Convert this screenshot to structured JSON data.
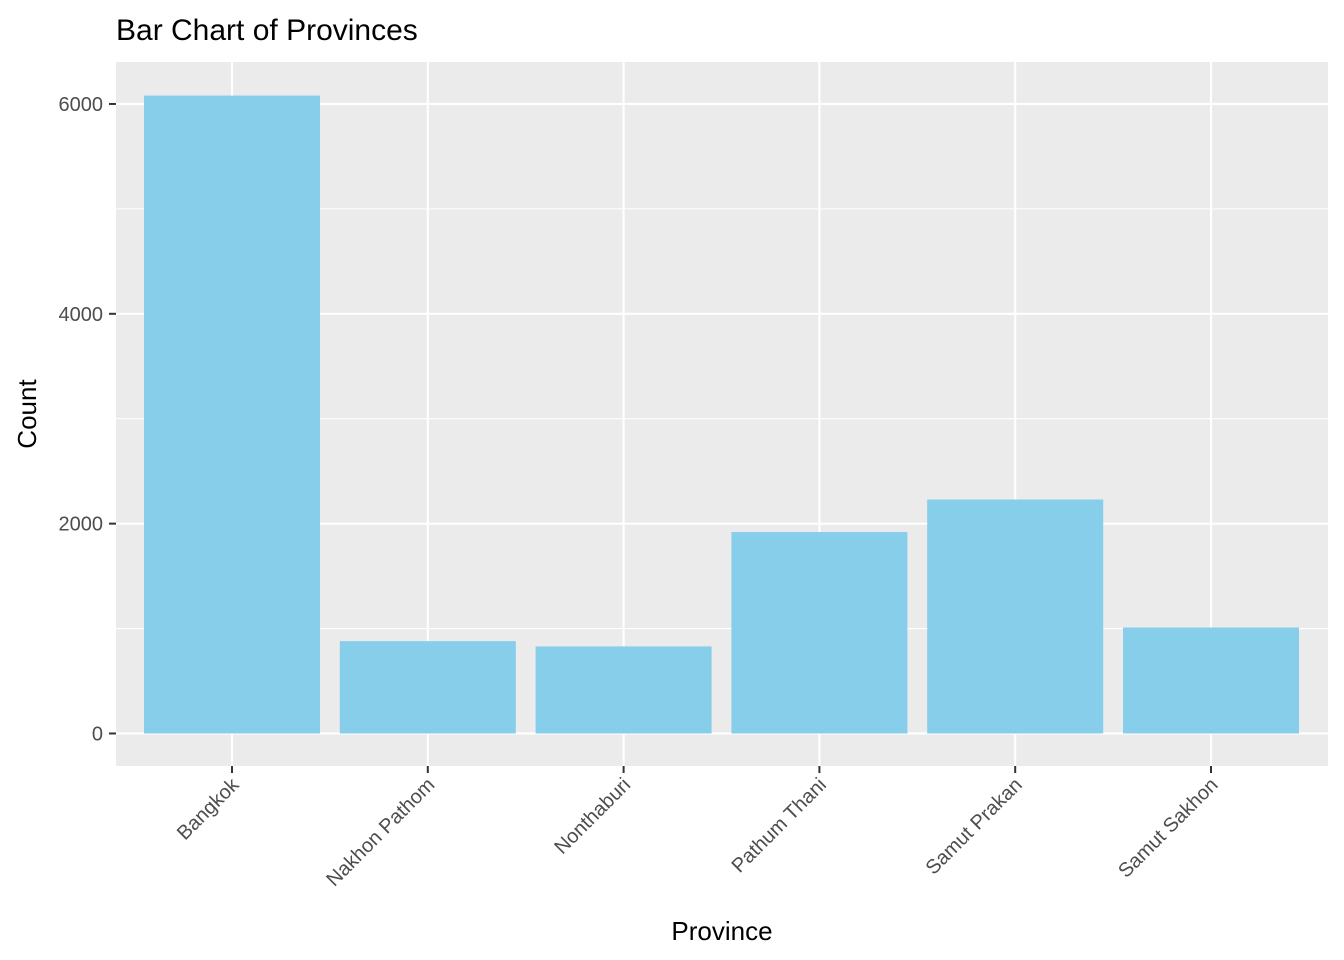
{
  "chart_data": {
    "type": "bar",
    "title": "Bar Chart of Provinces",
    "xlabel": "Province",
    "ylabel": "Count",
    "categories": [
      "Bangkok",
      "Nakhon Pathom",
      "Nonthaburi",
      "Pathum Thani",
      "Samut Prakan",
      "Samut Sakhon"
    ],
    "values": [
      6080,
      880,
      830,
      1920,
      2230,
      1010
    ],
    "ylim": [
      -310,
      6400
    ],
    "yticks": [
      0,
      2000,
      4000,
      6000
    ],
    "ytick_labels": [
      "0",
      "2000",
      "4000",
      "6000"
    ],
    "grid": true,
    "colors": {
      "bar": "#87ceeb",
      "panel": "#ebebeb",
      "grid_major": "#ffffff",
      "grid_minor": "#f7f7f7",
      "tick": "#333333"
    }
  }
}
